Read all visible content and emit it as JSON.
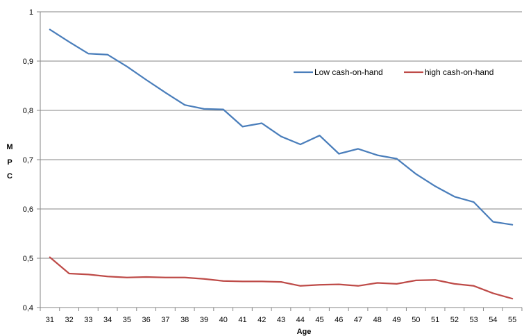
{
  "chart_data": {
    "type": "line",
    "xlabel": "Age",
    "ylabel": [
      "M",
      "P",
      "C"
    ],
    "ylim": [
      0.4,
      1
    ],
    "yticks": [
      0.4,
      0.5,
      0.6,
      0.7,
      0.8,
      0.9,
      1
    ],
    "ytick_labels": [
      "0,4",
      "0,5",
      "0,6",
      "0,7",
      "0,8",
      "0,9",
      "1"
    ],
    "grid": "horizontal",
    "legend_position": "top-right",
    "x": [
      31,
      32,
      33,
      34,
      35,
      36,
      37,
      38,
      39,
      40,
      41,
      42,
      43,
      44,
      45,
      46,
      47,
      48,
      49,
      50,
      51,
      52,
      53,
      54,
      55
    ],
    "series": [
      {
        "name": "Low cash-on-hand",
        "color": "#4a7ebb",
        "values": [
          0.964,
          0.939,
          0.915,
          0.913,
          0.889,
          0.862,
          0.836,
          0.811,
          0.803,
          0.802,
          0.767,
          0.774,
          0.747,
          0.731,
          0.749,
          0.712,
          0.722,
          0.709,
          0.702,
          0.671,
          0.646,
          0.625,
          0.614,
          0.574,
          0.568
        ]
      },
      {
        "name": "high cash-on-hand",
        "color": "#be4b48",
        "values": [
          0.502,
          0.469,
          0.467,
          0.463,
          0.461,
          0.462,
          0.461,
          0.461,
          0.458,
          0.454,
          0.453,
          0.453,
          0.452,
          0.444,
          0.446,
          0.447,
          0.444,
          0.45,
          0.448,
          0.455,
          0.456,
          0.448,
          0.444,
          0.429,
          0.418
        ]
      }
    ]
  }
}
